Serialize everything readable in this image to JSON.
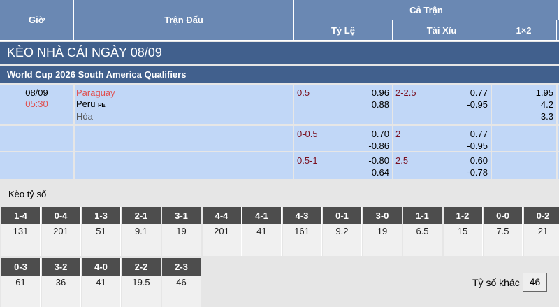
{
  "header": {
    "time": "Giờ",
    "match": "Trận Đấu",
    "full_match": "Cả Trận",
    "handicap": "Tỷ Lệ",
    "over_under": "Tài Xỉu",
    "one_x_two": "1×2"
  },
  "title": "KÈO NHÀ CÁI NGÀY 08/09",
  "league": "World Cup 2026 South America Qualifiers",
  "match": {
    "date": "08/09",
    "time": "05:30",
    "home": "Paraguay",
    "away": "Peru",
    "away_tag": "PE",
    "draw": "Hòa"
  },
  "rows": [
    {
      "hdp": "0.5",
      "hdp_home": "0.96",
      "hdp_away": "0.88",
      "ou": "2-2.5",
      "ou_over": "0.77",
      "ou_under": "-0.95",
      "x1": "1.95",
      "x2": "4.2",
      "xx": "3.3"
    },
    {
      "hdp": "0-0.5",
      "hdp_home": "0.70",
      "hdp_away": "-0.86",
      "ou": "2",
      "ou_over": "0.77",
      "ou_under": "-0.95"
    },
    {
      "hdp": "0.5-1",
      "hdp_home": "-0.80",
      "hdp_away": "0.64",
      "ou": "2.5",
      "ou_over": "0.60",
      "ou_under": "-0.78"
    }
  ],
  "correct_score": {
    "label": "Kèo tỷ số",
    "row1": [
      {
        "s": "1-4",
        "o": "131"
      },
      {
        "s": "0-4",
        "o": "201"
      },
      {
        "s": "1-3",
        "o": "51"
      },
      {
        "s": "2-1",
        "o": "9.1"
      },
      {
        "s": "3-1",
        "o": "19"
      },
      {
        "s": "4-4",
        "o": "201"
      },
      {
        "s": "4-1",
        "o": "41"
      },
      {
        "s": "4-3",
        "o": "161"
      },
      {
        "s": "0-1",
        "o": "9.2"
      },
      {
        "s": "3-0",
        "o": "19"
      },
      {
        "s": "1-1",
        "o": "6.5"
      },
      {
        "s": "1-2",
        "o": "15"
      },
      {
        "s": "0-0",
        "o": "7.5"
      },
      {
        "s": "0-2",
        "o": "21"
      }
    ],
    "row2": [
      {
        "s": "0-3",
        "o": "61"
      },
      {
        "s": "3-2",
        "o": "36"
      },
      {
        "s": "4-0",
        "o": "41"
      },
      {
        "s": "2-2",
        "o": "19.5"
      },
      {
        "s": "2-3",
        "o": "46"
      }
    ],
    "other_label": "Tỷ số khác",
    "other_value": "46"
  }
}
